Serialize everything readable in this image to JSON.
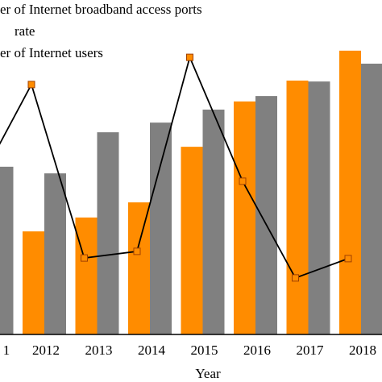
{
  "chart_data": {
    "type": "bar-line",
    "x_label": "Year",
    "categories": [
      "1",
      "2012",
      "2013",
      "2014",
      "2015",
      "2016",
      "2017",
      "2018"
    ],
    "ylim": [
      0,
      100
    ],
    "series": [
      {
        "name": "er of Internet broadband access ports",
        "type": "bar",
        "color": "#ff8c00",
        "values": [
          null,
          34.1,
          38.7,
          43.7,
          62.1,
          77.1,
          84.0,
          93.9
        ]
      },
      {
        "name": "rate",
        "type": "line",
        "color": "#000000",
        "marker_color": "#ff8c00",
        "values": [
          50.0,
          82.7,
          25.3,
          27.5,
          91.7,
          50.7,
          18.7,
          25.1
        ]
      },
      {
        "name": "er of Internet users",
        "type": "bar",
        "color": "#808080",
        "values": [
          55.5,
          53.3,
          66.9,
          70.1,
          74.4,
          78.9,
          83.7,
          89.6
        ]
      }
    ]
  }
}
